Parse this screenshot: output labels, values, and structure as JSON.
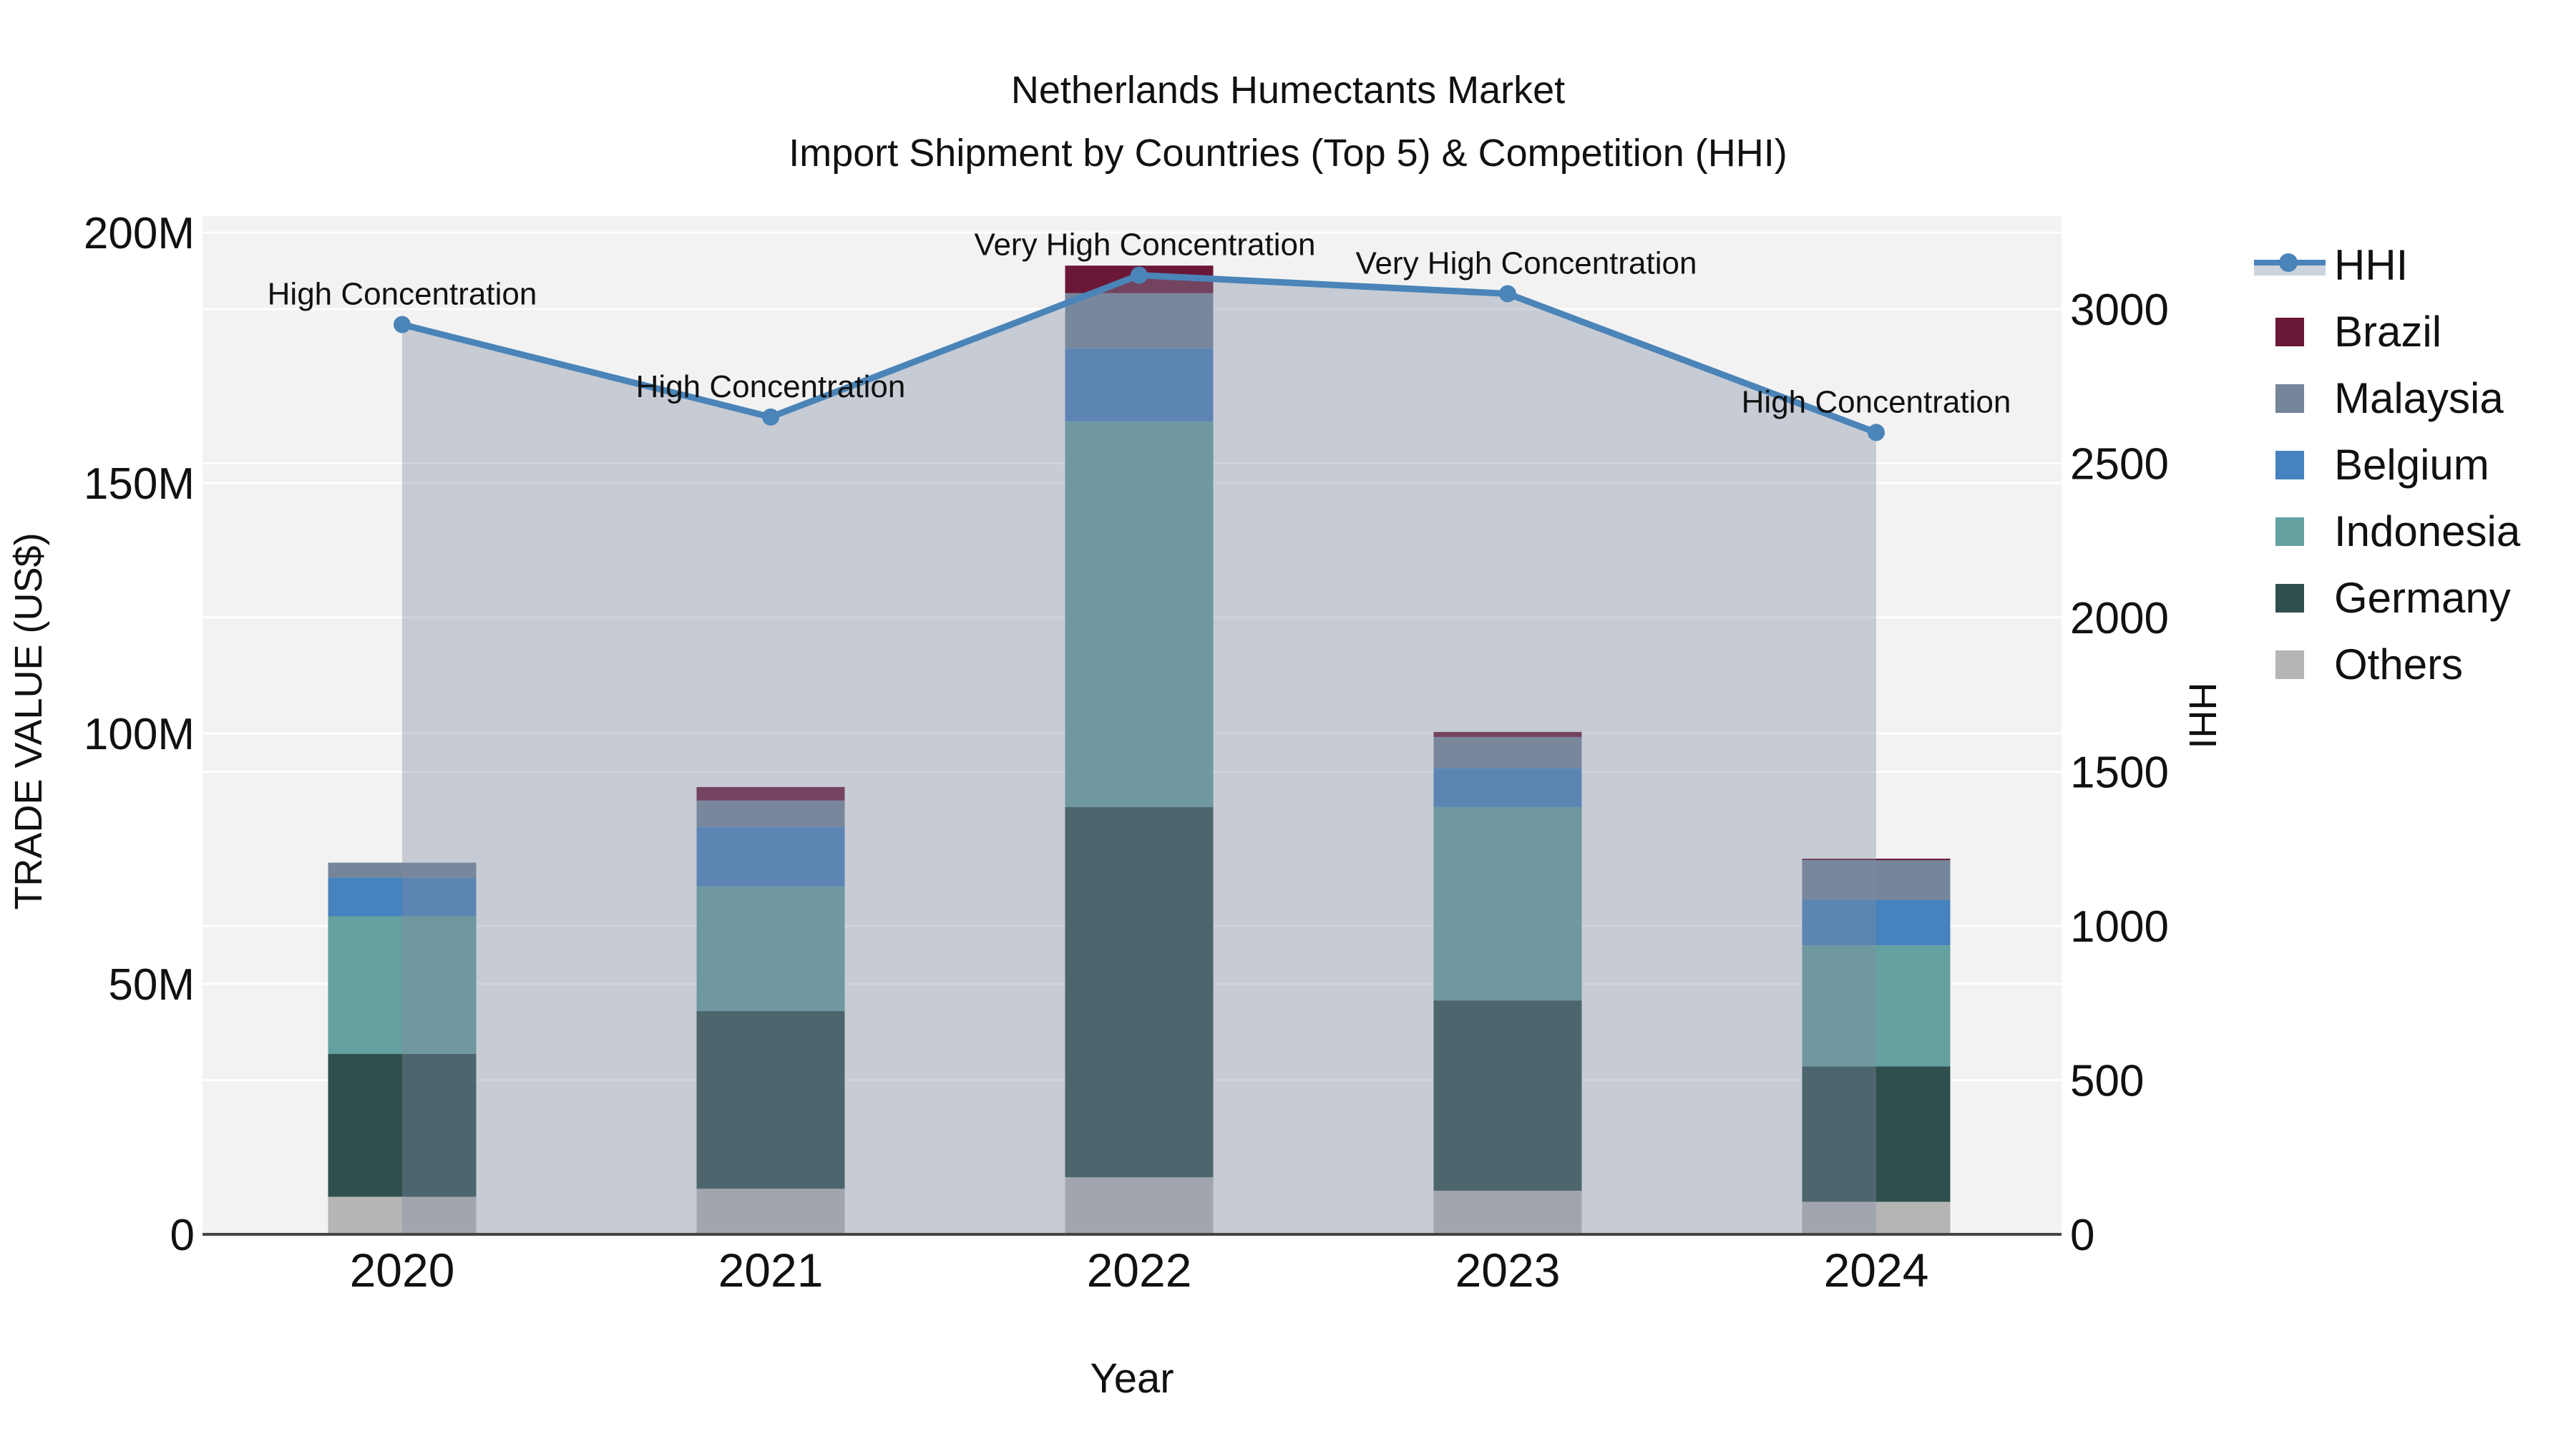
{
  "title": {
    "line1": "Netherlands Humectants Market",
    "line2": "Import Shipment by Countries (Top 5) & Competition (HHI)"
  },
  "axes": {
    "x": {
      "title": "Year",
      "ticks": [
        "2020",
        "2021",
        "2022",
        "2023",
        "2024"
      ]
    },
    "y_left": {
      "title": "TRADE VALUE (US$)",
      "ticks": [
        {
          "value": 0,
          "label": "0"
        },
        {
          "value": 50,
          "label": "50M"
        },
        {
          "value": 100,
          "label": "100M"
        },
        {
          "value": 150,
          "label": "150M"
        },
        {
          "value": 200,
          "label": "200M"
        }
      ],
      "units": "US$ millions"
    },
    "y_right": {
      "title": "HHI",
      "ticks": [
        {
          "value": 0,
          "label": "0"
        },
        {
          "value": 500,
          "label": "500"
        },
        {
          "value": 1000,
          "label": "1000"
        },
        {
          "value": 1500,
          "label": "1500"
        },
        {
          "value": 2000,
          "label": "2000"
        },
        {
          "value": 2500,
          "label": "2500"
        },
        {
          "value": 3000,
          "label": "3000"
        }
      ]
    }
  },
  "legend": [
    {
      "name": "HHI",
      "type": "line",
      "color": "#4a84b8"
    },
    {
      "name": "Brazil",
      "type": "swatch",
      "color": "#6b1738"
    },
    {
      "name": "Malaysia",
      "type": "swatch",
      "color": "#75859a"
    },
    {
      "name": "Belgium",
      "type": "swatch",
      "color": "#4682bd"
    },
    {
      "name": "Indonesia",
      "type": "swatch",
      "color": "#64a1a0"
    },
    {
      "name": "Germany",
      "type": "swatch",
      "color": "#2e4f4d"
    },
    {
      "name": "Others",
      "type": "swatch",
      "color": "#b5b5b5"
    }
  ],
  "chart_data": {
    "type": "combo: stacked-bar (left axis, US$ M) + line with area fill (right axis, HHI)",
    "categories": [
      "2020",
      "2021",
      "2022",
      "2023",
      "2024"
    ],
    "series": [
      {
        "name": "Others",
        "color": "#b5b5b5",
        "values": [
          7.5,
          9.1,
          11.4,
          8.7,
          6.5
        ]
      },
      {
        "name": "Germany",
        "color": "#2e4f4d",
        "values": [
          28.5,
          35.5,
          73.9,
          38.0,
          27.0
        ]
      },
      {
        "name": "Indonesia",
        "color": "#64a1a0",
        "values": [
          27.5,
          24.9,
          77.0,
          38.6,
          24.2
        ]
      },
      {
        "name": "Belgium",
        "color": "#4682bd",
        "values": [
          7.7,
          11.9,
          14.6,
          7.8,
          9.1
        ]
      },
      {
        "name": "Malaysia",
        "color": "#75859a",
        "values": [
          3.0,
          5.2,
          11.0,
          6.2,
          7.9
        ]
      },
      {
        "name": "Brazil",
        "color": "#6b1738",
        "values": [
          0.0,
          2.7,
          5.5,
          1.0,
          0.3
        ]
      }
    ],
    "stack_totals": [
      74.2,
      89.3,
      193.4,
      100.3,
      75.0
    ],
    "line": {
      "name": "HHI",
      "axis": "right",
      "color": "#4a84b8",
      "area_fill": "rgba(128,140,163,0.38)",
      "values": [
        2950,
        2650,
        3110,
        3050,
        2600
      ]
    },
    "annotations": [
      {
        "year": "2020",
        "text": "High Concentration"
      },
      {
        "year": "2021",
        "text": "High Concentration"
      },
      {
        "year": "2022",
        "text": "Very High Concentration"
      },
      {
        "year": "2023",
        "text": "Very High Concentration"
      },
      {
        "year": "2024",
        "text": "High Concentration"
      }
    ],
    "ylim_left": [
      0,
      203
    ],
    "ylim_right": [
      0,
      3300
    ],
    "grid": "on",
    "legend_position": "right",
    "plot_background": "#f2f2f2"
  }
}
